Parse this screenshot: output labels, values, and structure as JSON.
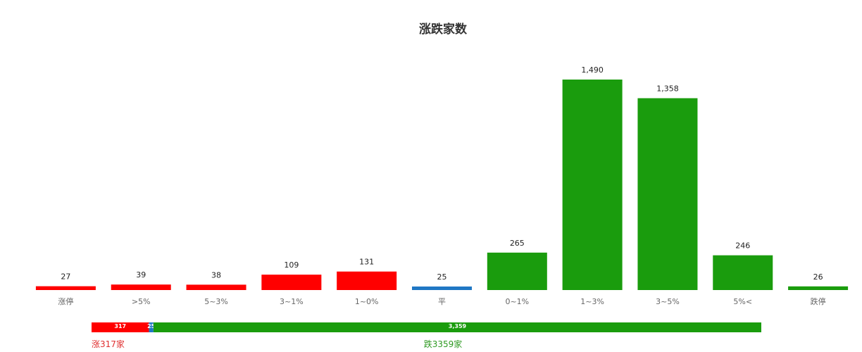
{
  "chart_data": [
    {
      "type": "bar",
      "title": "涨跌家数",
      "categories": [
        "涨停",
        ">5%",
        "5~3%",
        "3~1%",
        "1~0%",
        "平",
        "0~1%",
        "1~3%",
        "3~5%",
        "5%<",
        "跌停"
      ],
      "values": [
        27,
        39,
        38,
        109,
        131,
        25,
        265,
        1490,
        1358,
        246,
        26
      ],
      "value_labels": [
        "27",
        "39",
        "38",
        "109",
        "131",
        "25",
        "265",
        "1,490",
        "1,358",
        "246",
        "26"
      ],
      "grid": false,
      "colors": [
        "#ff0000",
        "#ff0000",
        "#ff0000",
        "#ff0000",
        "#ff0000",
        "#1f77c4",
        "#1a9c0d",
        "#1a9c0d",
        "#1a9c0d",
        "#1a9c0d",
        "#1a9c0d"
      ]
    },
    {
      "type": "bar",
      "orientation": "horizontal-stacked",
      "segments": [
        {
          "value": 317,
          "label": "317",
          "color": "#ff0000"
        },
        {
          "value": 25,
          "label": "25",
          "color": "#1f77c4"
        },
        {
          "value": 3359,
          "label": "3,359",
          "color": "#1a9c0d"
        }
      ],
      "captions": [
        {
          "text": "涨317家",
          "color": "#e03030"
        },
        {
          "text": "跌3359家",
          "color": "#2e9a22"
        }
      ]
    }
  ]
}
